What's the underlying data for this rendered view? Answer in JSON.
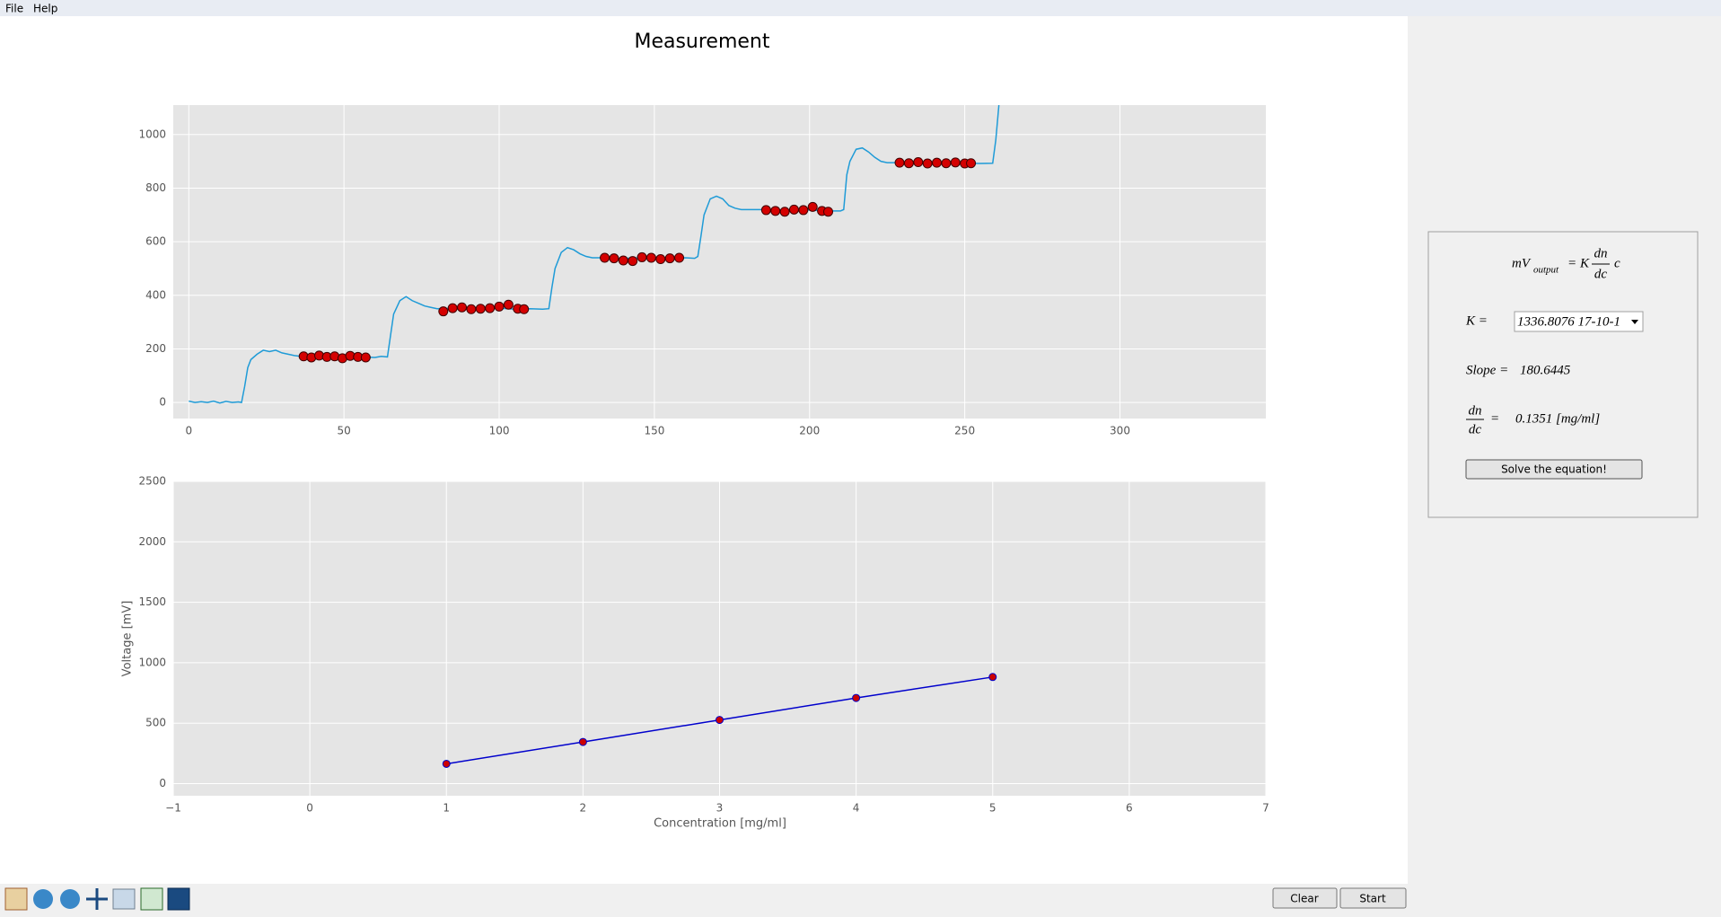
{
  "menu": [
    "File",
    "Help"
  ],
  "chart_data": [
    {
      "type": "line",
      "title": "Measurement",
      "xlim": [
        -5,
        347
      ],
      "ylim": [
        -60,
        1110
      ],
      "xticks": [
        0,
        50,
        100,
        150,
        200,
        250,
        300
      ],
      "yticks": [
        0,
        200,
        400,
        600,
        800,
        1000
      ],
      "grid": true,
      "series": [
        {
          "type": "line",
          "color": "#1f9bd7",
          "x": [
            0,
            2,
            4,
            6,
            8,
            10,
            12,
            14,
            16,
            17,
            18,
            19,
            20,
            22,
            24,
            26,
            28,
            30,
            32,
            34,
            36,
            40,
            45,
            50,
            55,
            60,
            62,
            64,
            65,
            66,
            68,
            70,
            72,
            74,
            76,
            78,
            80,
            85,
            90,
            95,
            100,
            105,
            110,
            114,
            116,
            117,
            118,
            120,
            122,
            124,
            126,
            128,
            130,
            135,
            140,
            145,
            150,
            155,
            160,
            163,
            164,
            165,
            166,
            168,
            170,
            172,
            174,
            176,
            178,
            185,
            190,
            195,
            200,
            205,
            210,
            211,
            212,
            213,
            215,
            217,
            219,
            221,
            223,
            225,
            230,
            240,
            250,
            255,
            259,
            260,
            261
          ],
          "values": [
            5,
            0,
            3,
            0,
            5,
            -2,
            4,
            0,
            2,
            0,
            60,
            130,
            160,
            180,
            195,
            190,
            195,
            185,
            180,
            175,
            172,
            170,
            172,
            168,
            170,
            168,
            172,
            170,
            250,
            330,
            380,
            395,
            380,
            370,
            360,
            355,
            350,
            352,
            348,
            350,
            352,
            348,
            350,
            348,
            350,
            430,
            500,
            560,
            578,
            570,
            555,
            545,
            540,
            540,
            538,
            540,
            540,
            538,
            540,
            538,
            545,
            620,
            700,
            760,
            770,
            760,
            735,
            725,
            720,
            720,
            718,
            720,
            718,
            715,
            715,
            720,
            850,
            900,
            945,
            950,
            935,
            915,
            900,
            895,
            895,
            893,
            893,
            892,
            893,
            980,
            1110
          ]
        },
        {
          "type": "scatter",
          "color": "#d40000",
          "x": [
            37,
            39.5,
            42,
            44.5,
            47,
            49.5,
            52,
            54.5,
            57,
            82,
            85,
            88,
            91,
            94,
            97,
            100,
            103,
            106,
            108,
            134,
            137,
            140,
            143,
            146,
            149,
            152,
            155,
            158,
            186,
            189,
            192,
            195,
            198,
            201,
            204,
            206,
            229,
            232,
            235,
            238,
            241,
            244,
            247,
            250,
            252
          ],
          "values": [
            172,
            168,
            175,
            170,
            172,
            165,
            174,
            170,
            168,
            340,
            352,
            355,
            348,
            350,
            352,
            358,
            365,
            350,
            348,
            540,
            538,
            530,
            528,
            542,
            540,
            535,
            538,
            540,
            718,
            715,
            712,
            720,
            718,
            730,
            715,
            712,
            895,
            893,
            897,
            892,
            895,
            893,
            896,
            892,
            893
          ]
        }
      ]
    },
    {
      "type": "line",
      "xlabel": "Concentration [mg/ml]",
      "ylabel": "Voltage [mV]",
      "xlim": [
        -1,
        7
      ],
      "ylim": [
        -100,
        2500
      ],
      "xticks": [
        {
          "value": -1,
          "label": "−1"
        },
        0,
        1,
        2,
        3,
        4,
        5,
        6,
        7
      ],
      "yticks": [
        0,
        500,
        1000,
        1500,
        2000,
        2500
      ],
      "grid": true,
      "series": [
        {
          "type": "line",
          "color": "#0000cc",
          "marker_color": "#cc0000",
          "x": [
            1,
            2,
            3,
            4,
            5
          ],
          "values": [
            164,
            345,
            527,
            709,
            882
          ]
        }
      ]
    }
  ],
  "panel": {
    "equation": {
      "lhs": "mV",
      "subscript": "output",
      "equals": "=",
      "k": "K",
      "numerator": "dn",
      "denominator": "dc",
      "c": "c"
    },
    "k_label": "K =",
    "k_value": "1336.8076 17-10-1",
    "slope_label": "Slope =",
    "slope_value": "180.6445",
    "dndc_numerator": "dn",
    "dndc_denominator": "dc",
    "dndc_equals": "=",
    "dndc_value": "0.1351 [mg/ml]",
    "button": "Solve the equation!"
  },
  "buttons": [
    "Clear",
    "Start"
  ]
}
